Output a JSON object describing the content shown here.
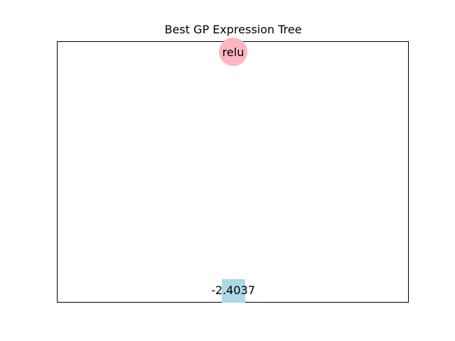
{
  "title": "Best GP Expression Tree",
  "tree": {
    "root": {
      "label": "relu",
      "shape": "circle",
      "color": "#ffb6c1"
    },
    "leaf": {
      "label": "-2.4037",
      "shape": "square",
      "color": "#add8e6"
    }
  }
}
